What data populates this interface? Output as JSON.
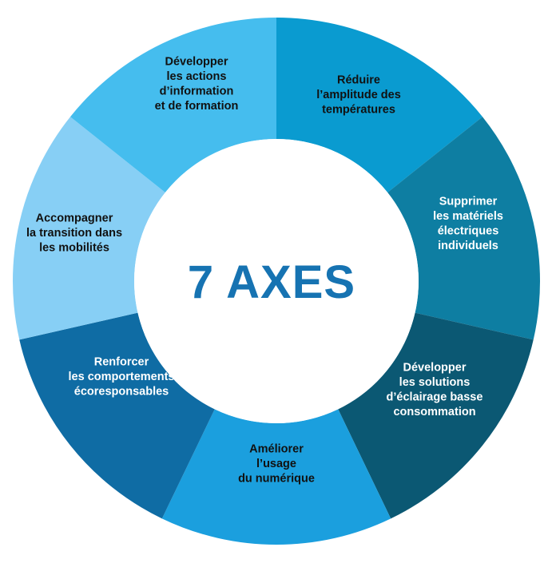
{
  "center": {
    "title": "7 AXES",
    "color": "#1673B2"
  },
  "segments": [
    {
      "id": "reduire",
      "color": "#0A9BD0",
      "text_color": "#111111",
      "lines": [
        "Réduire",
        "l’amplitude des",
        "températures"
      ]
    },
    {
      "id": "supprimer",
      "color": "#0E7EA2",
      "text_color": "#ffffff",
      "lines": [
        "Supprimer",
        "les matériels",
        "électriques",
        "individuels"
      ]
    },
    {
      "id": "eclairage",
      "color": "#0B5873",
      "text_color": "#ffffff",
      "lines": [
        "Développer",
        "les solutions",
        "d’éclairage basse",
        "consommation"
      ]
    },
    {
      "id": "numerique",
      "color": "#1B9FDE",
      "text_color": "#111111",
      "lines": [
        "Améliorer",
        "l’usage",
        "du numérique"
      ]
    },
    {
      "id": "comportements",
      "color": "#0F6CA4",
      "text_color": "#ffffff",
      "lines": [
        "Renforcer",
        "les comportements",
        "écoresponsables"
      ]
    },
    {
      "id": "mobilites",
      "color": "#87CFF5",
      "text_color": "#111111",
      "lines": [
        "Accompagner",
        "la transition dans",
        "les mobilités"
      ]
    },
    {
      "id": "information",
      "color": "#45BDEE",
      "text_color": "#111111",
      "lines": [
        "Développer",
        "les actions",
        "d’information",
        "et de formation"
      ]
    }
  ]
}
